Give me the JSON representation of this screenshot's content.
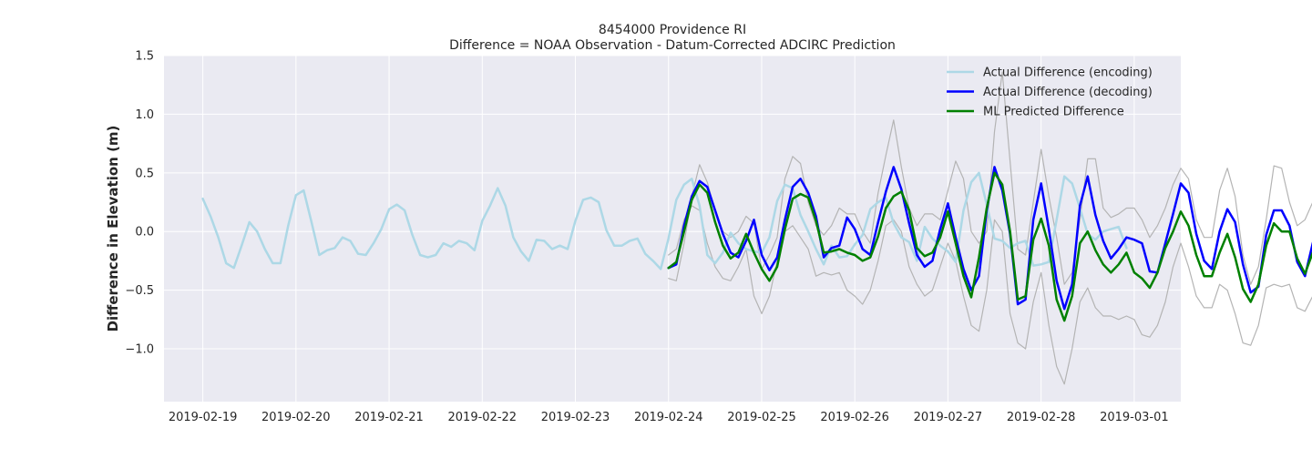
{
  "chart_data": {
    "type": "line",
    "title": "8454000 Providence RI",
    "subtitle": "Difference = NOAA Observation - Datum-Corrected ADCIRC Prediction",
    "xlabel": "",
    "ylabel": "Difference in Elevation (m)",
    "x_tick_labels": [
      "2019-02-19",
      "2019-02-20",
      "2019-02-21",
      "2019-02-22",
      "2019-02-23",
      "2019-02-24",
      "2019-02-25",
      "2019-02-26",
      "2019-02-27",
      "2019-02-28",
      "2019-03-01"
    ],
    "y_ticks": [
      1.5,
      1.0,
      0.5,
      0.0,
      -0.5,
      -1.0
    ],
    "y_tick_labels": [
      "1.5",
      "1.0",
      "0.5",
      "0.0",
      "−0.5",
      "−1.0"
    ],
    "xlim": [
      "2019-02-18T14:00",
      "2019-03-01T12:00"
    ],
    "ylim": [
      -1.45,
      1.5
    ],
    "grid": true,
    "legend_position": "top-right",
    "background_color": "#eaeaf2",
    "series": [
      {
        "name": "Actual Difference (encoding)",
        "color": "#add8e6",
        "x_start": "2019-02-19T00:00",
        "x_step_hours": 2,
        "values": [
          0.28,
          0.13,
          -0.05,
          -0.27,
          -0.31,
          -0.12,
          0.08,
          0.0,
          -0.15,
          -0.27,
          -0.27,
          0.05,
          0.31,
          0.35,
          0.08,
          -0.2,
          -0.16,
          -0.14,
          -0.05,
          -0.08,
          -0.19,
          -0.2,
          -0.1,
          0.02,
          0.19,
          0.23,
          0.18,
          -0.03,
          -0.2,
          -0.22,
          -0.2,
          -0.1,
          -0.13,
          -0.08,
          -0.1,
          -0.16,
          0.09,
          0.22,
          0.37,
          0.22,
          -0.05,
          -0.17,
          -0.25,
          -0.07,
          -0.08,
          -0.15,
          -0.12,
          -0.15,
          0.09,
          0.27,
          0.29,
          0.25,
          0.01,
          -0.12,
          -0.12,
          -0.08,
          -0.06,
          -0.19,
          -0.25,
          -0.32,
          -0.06,
          0.27,
          0.4,
          0.45,
          0.22,
          -0.2,
          -0.27,
          -0.18,
          -0.01,
          -0.1,
          -0.15,
          -0.17,
          -0.18,
          -0.05,
          0.26,
          0.4,
          0.37,
          0.14,
          0.0,
          -0.15,
          -0.28,
          -0.12,
          -0.22,
          -0.21,
          -0.11,
          -0.03,
          0.19,
          0.25,
          0.29,
          0.07,
          -0.05,
          -0.09,
          -0.25,
          0.04,
          -0.06,
          -0.12,
          -0.17,
          -0.26,
          0.18,
          0.42,
          0.5,
          0.23,
          -0.06,
          -0.08,
          -0.14,
          -0.1,
          -0.08,
          -0.29,
          -0.28,
          -0.26,
          0.1,
          0.47,
          0.41,
          0.2,
          -0.02,
          -0.07,
          0.0,
          0.02,
          0.04,
          -0.14
        ]
      },
      {
        "name": "Actual Difference (decoding)",
        "color": "#0000ff",
        "x_start": "2019-02-24T00:00",
        "x_step_hours": 2,
        "values": [
          -0.31,
          -0.28,
          0.05,
          0.3,
          0.43,
          0.38,
          0.18,
          -0.02,
          -0.18,
          -0.22,
          -0.08,
          0.1,
          -0.2,
          -0.33,
          -0.22,
          0.1,
          0.38,
          0.45,
          0.33,
          0.13,
          -0.22,
          -0.14,
          -0.12,
          0.12,
          0.02,
          -0.15,
          -0.2,
          0.08,
          0.34,
          0.55,
          0.36,
          0.07,
          -0.2,
          -0.3,
          -0.25,
          0.02,
          0.24,
          -0.05,
          -0.32,
          -0.5,
          -0.38,
          0.18,
          0.55,
          0.35,
          -0.02,
          -0.62,
          -0.58,
          0.1,
          0.41,
          0.02,
          -0.42,
          -0.66,
          -0.45,
          0.22,
          0.47,
          0.14,
          -0.08,
          -0.23,
          -0.15,
          -0.05,
          -0.07,
          -0.1,
          -0.34,
          -0.35,
          -0.1,
          0.15,
          0.41,
          0.33,
          -0.02,
          -0.25,
          -0.32,
          0.0,
          0.19,
          0.08,
          -0.28,
          -0.52,
          -0.47,
          -0.03,
          0.18,
          0.18,
          0.05,
          -0.26,
          -0.38,
          -0.1,
          0.12,
          0.05,
          -0.09,
          -0.18,
          -0.18,
          -0.12,
          0.18,
          0.23,
          0.1,
          -0.13,
          -0.12,
          0.22,
          -0.05,
          -0.15,
          -0.25,
          -0.11,
          -0.06,
          0.08,
          0.06,
          0.02,
          -0.15,
          -0.13,
          -0.02,
          0.1,
          0.09,
          0.09,
          -0.22,
          -0.29,
          -0.18,
          -0.02,
          0.2,
          0.08,
          0.02,
          -0.01
        ]
      },
      {
        "name": "ML Predicted Difference",
        "color": "#008000",
        "x_start": "2019-02-24T00:00",
        "x_step_hours": 2,
        "values": [
          -0.31,
          -0.26,
          0.0,
          0.27,
          0.4,
          0.33,
          0.08,
          -0.12,
          -0.23,
          -0.18,
          -0.02,
          -0.18,
          -0.32,
          -0.42,
          -0.3,
          0.02,
          0.28,
          0.32,
          0.29,
          0.09,
          -0.18,
          -0.17,
          -0.15,
          -0.18,
          -0.2,
          -0.25,
          -0.22,
          -0.04,
          0.2,
          0.3,
          0.34,
          0.18,
          -0.14,
          -0.21,
          -0.18,
          -0.05,
          0.17,
          -0.1,
          -0.38,
          -0.56,
          -0.22,
          0.2,
          0.5,
          0.4,
          0.0,
          -0.58,
          -0.55,
          -0.07,
          0.11,
          -0.12,
          -0.58,
          -0.76,
          -0.55,
          -0.1,
          0.0,
          -0.16,
          -0.28,
          -0.35,
          -0.28,
          -0.18,
          -0.35,
          -0.4,
          -0.48,
          -0.35,
          -0.14,
          0.0,
          0.17,
          0.05,
          -0.2,
          -0.38,
          -0.38,
          -0.18,
          -0.02,
          -0.22,
          -0.49,
          -0.6,
          -0.45,
          -0.12,
          0.07,
          0.0,
          0.0,
          -0.23,
          -0.36,
          -0.18,
          -0.1,
          -0.2,
          -0.12,
          -0.18,
          -0.2,
          -0.18,
          -0.28,
          0.0,
          0.16,
          0.08,
          -0.13,
          -0.28,
          -0.2,
          -0.34,
          -0.14,
          -0.24,
          -0.18,
          -0.1,
          -0.04,
          -0.05,
          -0.12,
          -0.15,
          -0.03,
          -0.08,
          -0.24,
          -0.15,
          -0.28,
          -0.18,
          -0.05,
          0.08,
          0.04,
          -0.12,
          -0.1
        ]
      },
      {
        "name": "",
        "color": "#b4b4b4",
        "x_start": "2019-02-24T00:00",
        "x_step_hours": 2,
        "values": [
          -0.4,
          -0.42,
          -0.1,
          0.3,
          0.57,
          0.42,
          0.18,
          0.0,
          -0.05,
          0.0,
          0.13,
          0.07,
          -0.32,
          -0.2,
          -0.05,
          0.45,
          0.64,
          0.58,
          0.25,
          0.05,
          -0.03,
          0.05,
          0.2,
          0.15,
          0.15,
          0.0,
          -0.1,
          0.33,
          0.65,
          0.95,
          0.55,
          0.2,
          0.05,
          0.15,
          0.15,
          0.1,
          0.35,
          0.6,
          0.45,
          0.0,
          -0.1,
          0.0,
          0.85,
          1.36,
          0.6,
          -0.15,
          -0.2,
          0.25,
          0.7,
          0.3,
          -0.05,
          -0.45,
          -0.35,
          0.1,
          0.62,
          0.62,
          0.2,
          0.12,
          0.15,
          0.2,
          0.2,
          0.1,
          -0.05,
          0.05,
          0.2,
          0.4,
          0.54,
          0.45,
          0.1,
          -0.05,
          -0.05,
          0.35,
          0.54,
          0.3,
          -0.2,
          -0.45,
          -0.3,
          0.1,
          0.56,
          0.54,
          0.25,
          0.05,
          0.1,
          0.25,
          0.15,
          0.25,
          0.2,
          0.15,
          0.1,
          0.0,
          0.3,
          0.66,
          0.6,
          0.3,
          0.2,
          0.1,
          0.1,
          0.2,
          0.1,
          0.15,
          0.2,
          0.4,
          0.35,
          0.25,
          0.25,
          0.35,
          0.2,
          0.1,
          0.25,
          0.1,
          0.2,
          0.2,
          0.35,
          0.54,
          0.45,
          0.28,
          0.34
        ]
      },
      {
        "name": "",
        "color": "#b4b4b4",
        "x_start": "2019-02-24T00:00",
        "x_step_hours": 2,
        "values": [
          -0.2,
          -0.15,
          0.1,
          0.22,
          0.18,
          -0.1,
          -0.3,
          -0.4,
          -0.42,
          -0.3,
          -0.15,
          -0.55,
          -0.7,
          -0.55,
          -0.25,
          0.0,
          0.05,
          -0.05,
          -0.15,
          -0.38,
          -0.35,
          -0.37,
          -0.35,
          -0.5,
          -0.55,
          -0.62,
          -0.5,
          -0.25,
          0.05,
          0.1,
          0.0,
          -0.3,
          -0.45,
          -0.55,
          -0.5,
          -0.3,
          -0.1,
          -0.25,
          -0.55,
          -0.8,
          -0.85,
          -0.5,
          0.1,
          0.0,
          -0.7,
          -0.95,
          -1.0,
          -0.6,
          -0.35,
          -0.8,
          -1.15,
          -1.3,
          -1.0,
          -0.6,
          -0.48,
          -0.65,
          -0.72,
          -0.72,
          -0.75,
          -0.72,
          -0.75,
          -0.88,
          -0.9,
          -0.8,
          -0.6,
          -0.3,
          -0.1,
          -0.3,
          -0.55,
          -0.65,
          -0.65,
          -0.45,
          -0.5,
          -0.7,
          -0.95,
          -0.97,
          -0.8,
          -0.48,
          -0.45,
          -0.47,
          -0.45,
          -0.65,
          -0.68,
          -0.55,
          -0.55,
          -0.6,
          -0.62,
          -0.6,
          -0.65,
          -0.7,
          -0.55,
          -0.3,
          -0.35,
          -0.5,
          -0.6,
          -0.72,
          -0.6,
          -0.8,
          -0.57,
          -0.56,
          -0.6,
          -0.65,
          -0.55,
          -0.45,
          -0.5,
          -0.55,
          -0.5,
          -0.42,
          -0.55,
          -0.58,
          -0.68,
          -0.65,
          -0.55,
          -0.38,
          -0.45,
          -0.48,
          -0.52
        ]
      }
    ]
  }
}
